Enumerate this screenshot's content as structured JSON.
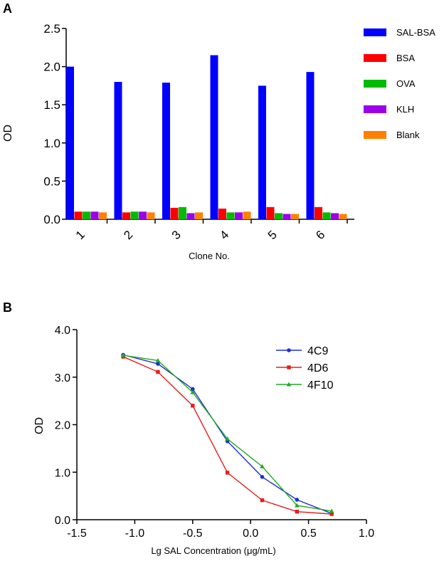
{
  "panels": {
    "a": {
      "label": "A"
    },
    "b": {
      "label": "B"
    }
  },
  "chart_data": [
    {
      "type": "bar",
      "panel": "A",
      "title": "",
      "xlabel": "Clone No.",
      "ylabel": "OD",
      "ylim": [
        0,
        2.5
      ],
      "yticks": [
        "0.0",
        "0.5",
        "1.0",
        "1.5",
        "2.0",
        "2.5"
      ],
      "categories": [
        "1",
        "2",
        "3",
        "4",
        "5",
        "6"
      ],
      "legend_position": "right",
      "series": [
        {
          "name": "SAL-BSA",
          "color": "#0000ff",
          "values": [
            2.0,
            1.8,
            1.79,
            2.15,
            1.75,
            1.93
          ]
        },
        {
          "name": "BSA",
          "color": "#ff0000",
          "values": [
            0.1,
            0.09,
            0.15,
            0.14,
            0.16,
            0.16
          ]
        },
        {
          "name": "OVA",
          "color": "#00bb00",
          "values": [
            0.1,
            0.1,
            0.16,
            0.09,
            0.08,
            0.09
          ]
        },
        {
          "name": "KLH",
          "color": "#9b00e8",
          "values": [
            0.1,
            0.1,
            0.08,
            0.09,
            0.07,
            0.08
          ]
        },
        {
          "name": "Blank",
          "color": "#ff8000",
          "values": [
            0.09,
            0.09,
            0.09,
            0.1,
            0.07,
            0.07
          ]
        }
      ]
    },
    {
      "type": "line",
      "panel": "B",
      "title": "",
      "xlabel": "Lg SAL Concentration (μg/mL)",
      "ylabel": "OD",
      "xlim": [
        -1.5,
        1.0
      ],
      "ylim": [
        0,
        4.0
      ],
      "xticks": [
        {
          "v": -1.5,
          "label": "-1.5"
        },
        {
          "v": -1.0,
          "label": "-1.0"
        },
        {
          "v": -0.5,
          "label": "-0.5"
        },
        {
          "v": 0.0,
          "label": "0.0"
        },
        {
          "v": 0.5,
          "label": "0.5"
        },
        {
          "v": 1.0,
          "label": "1.0"
        }
      ],
      "yticks": [
        {
          "v": 0,
          "label": "0.0"
        },
        {
          "v": 1,
          "label": "1.0"
        },
        {
          "v": 2,
          "label": "2.0"
        },
        {
          "v": 3,
          "label": "3.0"
        },
        {
          "v": 4,
          "label": "4.0"
        }
      ],
      "x": [
        -1.1,
        -0.8,
        -0.5,
        -0.2,
        0.1,
        0.4,
        0.7
      ],
      "legend_position": "top-right",
      "series": [
        {
          "name": "4C9",
          "color": "#1f2fd6",
          "marker": "circle",
          "values": [
            3.47,
            3.28,
            2.75,
            1.65,
            0.9,
            0.42,
            0.13
          ]
        },
        {
          "name": "4D6",
          "color": "#e51d1d",
          "marker": "square",
          "values": [
            3.43,
            3.11,
            2.4,
            0.99,
            0.41,
            0.17,
            0.12
          ]
        },
        {
          "name": "4F10",
          "color": "#22aa22",
          "marker": "triangle",
          "values": [
            3.46,
            3.35,
            2.68,
            1.7,
            1.12,
            0.3,
            0.18
          ]
        }
      ]
    }
  ]
}
